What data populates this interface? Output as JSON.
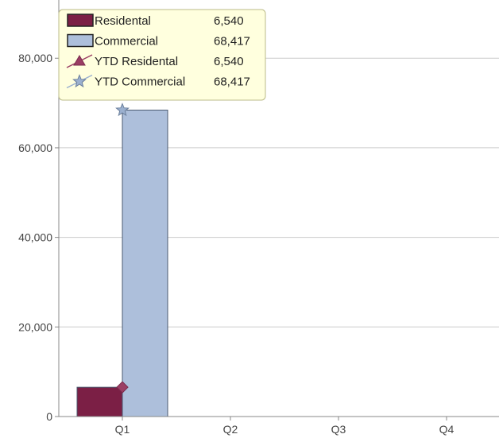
{
  "chart_data": {
    "type": "bar",
    "categories": [
      "Q1",
      "Q2",
      "Q3",
      "Q4"
    ],
    "series": [
      {
        "name": "Residental",
        "kind": "bar",
        "color": "#7b1f45",
        "values": [
          6540,
          null,
          null,
          null
        ]
      },
      {
        "name": "Commercial",
        "kind": "bar",
        "color": "#adbfdb",
        "values": [
          68417,
          null,
          null,
          null
        ]
      },
      {
        "name": "YTD Residental",
        "kind": "line",
        "marker": "diamond",
        "color": "#9b3e64",
        "values": [
          6540,
          null,
          null,
          null
        ]
      },
      {
        "name": "YTD Commercial",
        "kind": "line",
        "marker": "star",
        "color": "#9bb0cf",
        "values": [
          68417,
          null,
          null,
          null
        ]
      }
    ],
    "yticks": [
      0,
      20000,
      40000,
      60000,
      80000
    ],
    "ytick_labels": [
      "0",
      "20,000",
      "40,000",
      "60,000",
      "80,000"
    ],
    "ylim": [
      0,
      93000
    ],
    "grid": true,
    "tooltip": {
      "category": "Q1",
      "rows": [
        {
          "label": "Residental",
          "value": "6,540",
          "marker": "square",
          "color": "#7b1f45"
        },
        {
          "label": "Commercial",
          "value": "68,417",
          "marker": "square",
          "color": "#adbfdb"
        },
        {
          "label": "YTD Residental",
          "value": "6,540",
          "marker": "triangle-line",
          "color": "#9b3e64"
        },
        {
          "label": "YTD Commercial",
          "value": "68,417",
          "marker": "star-line",
          "color": "#9bb0cf"
        }
      ]
    },
    "colors": {
      "axis": "#888888",
      "grid": "#cccccc",
      "tooltip_bg": "#ffffde",
      "tooltip_border": "#bbbb88"
    }
  }
}
